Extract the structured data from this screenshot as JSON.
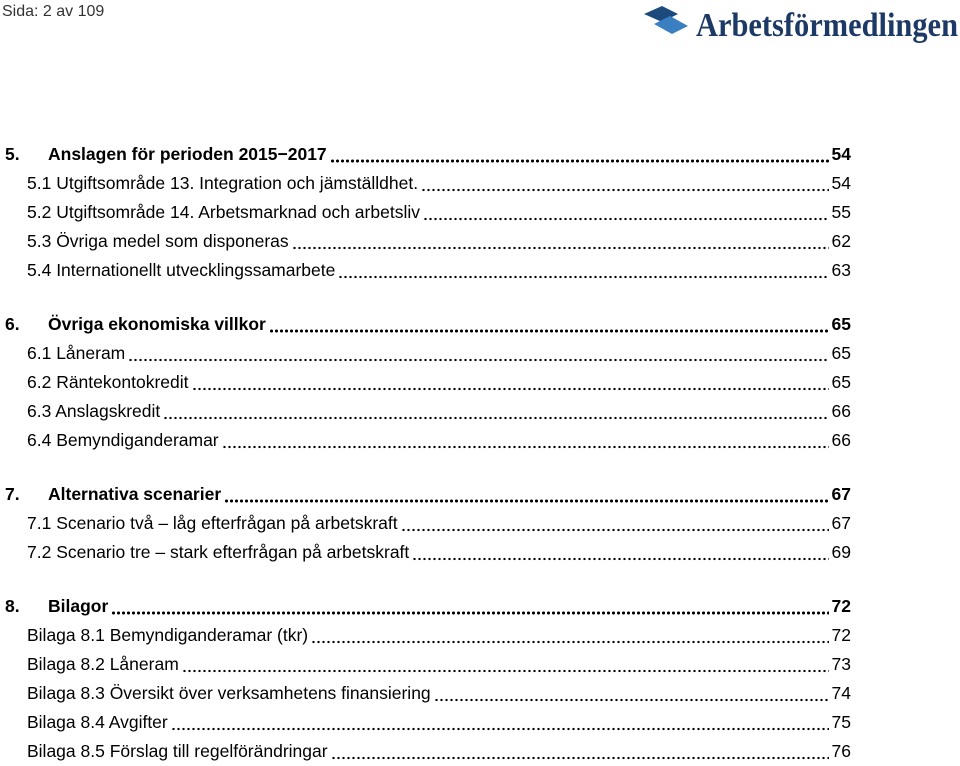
{
  "header": {
    "page_info": "Sida: 2 av 109",
    "logo": "Arbetsförmedlingen"
  },
  "sections": [
    {
      "number": "5.",
      "title": "Anslagen för perioden 2015−2017",
      "page": "54",
      "entries": [
        {
          "label": "5.1 Utgiftsområde 13. Integration och jämställdhet.",
          "page": "54"
        },
        {
          "label": "5.2 Utgiftsområde 14. Arbetsmarknad och arbetsliv",
          "page": "55"
        },
        {
          "label": "5.3 Övriga medel som disponeras",
          "page": "62"
        },
        {
          "label": "5.4 Internationellt utvecklingssamarbete",
          "page": "63"
        }
      ]
    },
    {
      "number": "6.",
      "title": "Övriga ekonomiska villkor",
      "page": "65",
      "entries": [
        {
          "label": "6.1 Låneram",
          "page": "65"
        },
        {
          "label": "6.2 Räntekontokredit",
          "page": "65"
        },
        {
          "label": "6.3 Anslagskredit",
          "page": "66"
        },
        {
          "label": "6.4 Bemyndiganderamar",
          "page": "66"
        }
      ]
    },
    {
      "number": "7.",
      "title": "Alternativa scenarier",
      "page": "67",
      "entries": [
        {
          "label": "7.1 Scenario två – låg efterfrågan på arbetskraft",
          "page": "67"
        },
        {
          "label": "7.2 Scenario tre – stark efterfrågan på arbetskraft",
          "page": "69"
        }
      ]
    },
    {
      "number": "8.",
      "title": "Bilagor",
      "page": "72",
      "entries": [
        {
          "label": "Bilaga 8.1 Bemyndiganderamar (tkr)",
          "page": "72"
        },
        {
          "label": "Bilaga 8.2 Låneram",
          "page": "73"
        },
        {
          "label": "Bilaga 8.3 Översikt över verksamhetens finansiering",
          "page": "74"
        },
        {
          "label": "Bilaga 8.4 Avgifter",
          "page": "75"
        },
        {
          "label": "Bilaga 8.5 Förslag till regelförändringar",
          "page": "76"
        }
      ]
    }
  ]
}
